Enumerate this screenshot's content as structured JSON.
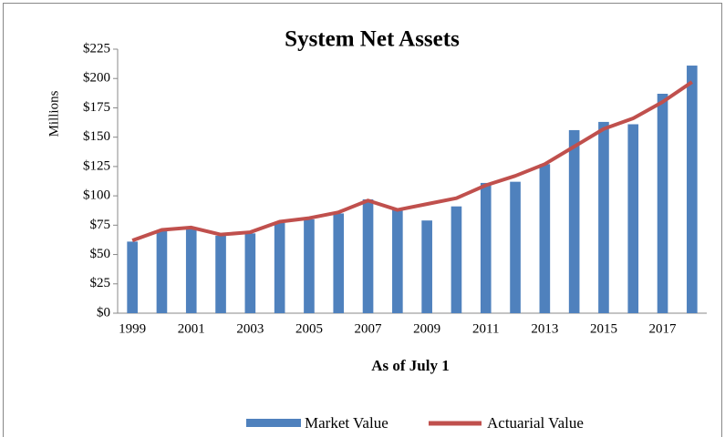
{
  "chart_data": {
    "type": "bar_line",
    "title": "System Net Assets",
    "y_label": "Millions",
    "x_label": "As of July 1",
    "categories": [
      "1999",
      null,
      "2001",
      null,
      "2003",
      null,
      "2005",
      null,
      "2007",
      null,
      "2009",
      null,
      "2011",
      null,
      "2013",
      null,
      "2015",
      null,
      "2017",
      null
    ],
    "series": [
      {
        "name": "Market Value",
        "type": "bar",
        "color": "#4f81bd",
        "values": [
          61,
          70,
          72,
          66,
          68,
          77,
          80,
          85,
          97,
          88,
          79,
          91,
          111,
          112,
          127,
          156,
          163,
          161,
          187,
          211
        ]
      },
      {
        "name": "Actuarial Value",
        "type": "line",
        "color": "#c0504d",
        "values": [
          62,
          71,
          73,
          67,
          69,
          78,
          81,
          86,
          96,
          88,
          93,
          98,
          109,
          117,
          127,
          142,
          157,
          166,
          180,
          197
        ]
      }
    ],
    "ylim": [
      0,
      225
    ],
    "yticks": [
      {
        "value": 0,
        "label": "$0"
      },
      {
        "value": 25,
        "label": "$25"
      },
      {
        "value": 50,
        "label": "$50"
      },
      {
        "value": 75,
        "label": "$75"
      },
      {
        "value": 100,
        "label": "$100"
      },
      {
        "value": 125,
        "label": "$125"
      },
      {
        "value": 150,
        "label": "$150"
      },
      {
        "value": 175,
        "label": "$175"
      },
      {
        "value": 200,
        "label": "$200"
      },
      {
        "value": 225,
        "label": "$225"
      }
    ],
    "legend": "bottom"
  }
}
